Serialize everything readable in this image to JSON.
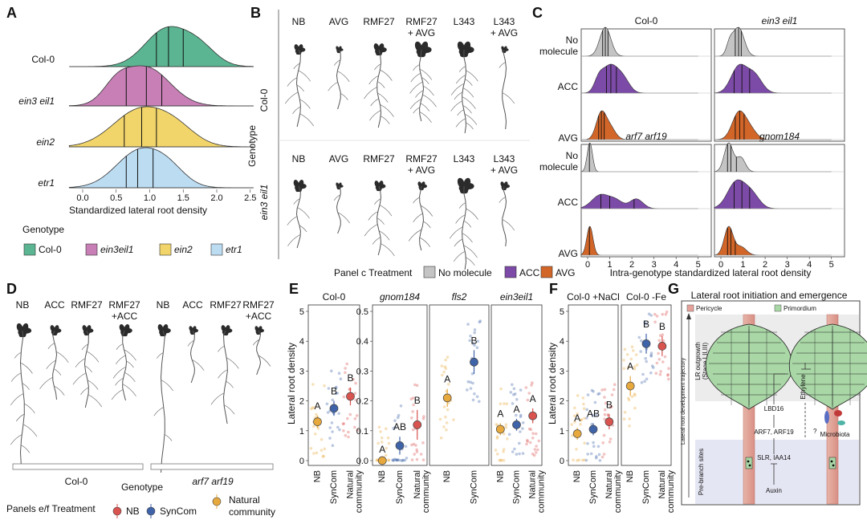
{
  "colors": {
    "col0": "#5bb592",
    "ein3eil1": "#c77fb6",
    "ein2": "#f2d56a",
    "etr1": "#bcdcf2",
    "nomol": "#c4c4c4",
    "acc": "#7c4aa7",
    "avg": "#d26528",
    "nb": "#d9534f",
    "syncom": "#3f63a8",
    "natural": "#e7a93d",
    "pericycle": "#e6a29a",
    "primordium": "#a9d7a6"
  },
  "panel_labels": {
    "a": "A",
    "b": "B",
    "c": "C",
    "d": "D",
    "e": "E",
    "f": "F",
    "g": "G"
  },
  "panel_a": {
    "genotype_rows": [
      "Col-0",
      "ein3 eil1",
      "ein2",
      "etr1"
    ],
    "xticks": [
      "0.0",
      "0.5",
      "1.0",
      "1.5",
      "2.0",
      "2.5"
    ],
    "xlabel": "Standardized lateral root density",
    "legend_title": "Genotype",
    "legend": [
      "Col-0",
      "ein3eil1",
      "ein2",
      "etr1"
    ]
  },
  "panel_b": {
    "treatments": [
      "NB",
      "AVG",
      "RMF27",
      "RMF27\n+ AVG",
      "L343",
      "L343\n+ AVG"
    ],
    "treatment_line1": [
      "NB",
      "AVG",
      "RMF27",
      "RMF27",
      "L343",
      "L343"
    ],
    "treatment_line2": [
      "",
      "",
      "",
      "+ AVG",
      "",
      "+ AVG"
    ],
    "genotypes": [
      "Col-0",
      "ein3 eil1"
    ],
    "axis_label": "Genotype"
  },
  "panel_c": {
    "facet_titles": [
      "Col-0",
      "ein3 eil1",
      "arf7 arf19",
      "gnom184"
    ],
    "row_labels": [
      "No\nmolecule",
      "ACC",
      "AVG"
    ],
    "row_line1": [
      "No",
      "ACC",
      "AVG"
    ],
    "row_line2": [
      "molecule",
      "",
      ""
    ],
    "xticks": [
      "0",
      "1",
      "2",
      "3",
      "4",
      "5"
    ],
    "xlabel": "Intra-genotype standardized  lateral root density",
    "legend_title": "Panel c Treatment",
    "legend": [
      "No molecule",
      "ACC",
      "AVG"
    ]
  },
  "panel_d": {
    "treatments_left": [
      "NB",
      "ACC",
      "RMF27",
      "RMF27\n+ACC"
    ],
    "treatments_right": [
      "NB",
      "ACC",
      "RMF27",
      "RMF27\n+ACC"
    ],
    "genotypes": [
      "Col-0",
      "arf7 arf19"
    ],
    "axis_label": "Genotype",
    "legend_title": "Panels e/f Treatment",
    "legend": [
      "NB",
      "SynCom",
      "Natural\ncommunity"
    ],
    "legend_line1": [
      "NB",
      "SynCom",
      "Natural"
    ],
    "legend_line2": [
      "",
      "",
      "community"
    ]
  },
  "panel_e": {
    "ylabel": "Lateral root density",
    "facets": [
      {
        "title": "Col-0",
        "italic": false,
        "yticks": [
          "0",
          "1",
          "2",
          "3",
          "4",
          "5"
        ],
        "ymax": 5,
        "groups": [
          "NB",
          "SynCom",
          "Natural\ncommunity"
        ],
        "means": [
          1.3,
          1.75,
          2.15
        ],
        "ci": [
          [
            1.1,
            1.5
          ],
          [
            1.5,
            2.0
          ],
          [
            1.85,
            2.45
          ]
        ],
        "letters": [
          "A",
          "B",
          "B"
        ]
      },
      {
        "title": "gnom184",
        "italic": true,
        "yticks": [
          "0.0",
          "0.1",
          "0.2",
          "0.3",
          "0.4",
          "0.5"
        ],
        "ymax": 0.5,
        "groups": [
          "NB",
          "SynCom",
          "Natural\ncommunity"
        ],
        "means": [
          0.0,
          0.05,
          0.12
        ],
        "ci": [
          [
            0.0,
            0.005
          ],
          [
            0.02,
            0.08
          ],
          [
            0.07,
            0.17
          ]
        ],
        "letters": [
          "A",
          "AB",
          "B"
        ]
      },
      {
        "title": "fls2",
        "italic": true,
        "yticks": [],
        "ymax": 5,
        "groups": [
          "NB",
          "SynCom"
        ],
        "means": [
          2.1,
          3.3
        ],
        "ci": [
          [
            1.8,
            2.4
          ],
          [
            2.9,
            3.7
          ]
        ],
        "letters": [
          "A",
          "B"
        ]
      },
      {
        "title": "ein3eil1",
        "italic": true,
        "yticks": [],
        "ymax": 5,
        "groups": [
          "NB",
          "SynCom",
          "Natural\ncommunity"
        ],
        "means": [
          1.05,
          1.2,
          1.5
        ],
        "ci": [
          [
            0.85,
            1.25
          ],
          [
            1.0,
            1.4
          ],
          [
            1.25,
            1.75
          ]
        ],
        "letters": [
          "A",
          "A",
          "A"
        ]
      }
    ]
  },
  "panel_f": {
    "ylabel": "Lateral root density",
    "facets": [
      {
        "title": "Col-0 +NaCl",
        "yticks": [
          "0",
          "1",
          "2",
          "3",
          "4",
          "5"
        ],
        "ymax": 5,
        "groups": [
          "NB",
          "SynCom",
          "Natural\ncommunity"
        ],
        "means": [
          0.9,
          1.05,
          1.3
        ],
        "ci": [
          [
            0.7,
            1.1
          ],
          [
            0.85,
            1.25
          ],
          [
            1.05,
            1.55
          ]
        ],
        "letters": [
          "A",
          "AB",
          "B"
        ]
      },
      {
        "title": "Col-0 -Fe",
        "yticks": [],
        "ymax": 3,
        "groups": [
          "NB",
          "SynCom",
          "Natural\ncommunity"
        ],
        "means": [
          1.5,
          2.35,
          2.3
        ],
        "ci": [
          [
            1.3,
            1.7
          ],
          [
            2.15,
            2.55
          ],
          [
            2.1,
            2.5
          ]
        ],
        "letters": [
          "A",
          "B",
          "B"
        ]
      }
    ]
  },
  "panel_g": {
    "title": "Lateral root initiation and emergence",
    "legend": [
      "Pericycle",
      "Primordium"
    ],
    "trajectory_label": "Lateral root development trajectory",
    "outgrowth_label": "LR outgrowth\n(Stage I,II,III)",
    "outgrowth_line1": "LR outgrowth",
    "outgrowth_line2": "(Stage I,II,III)",
    "prebranch_label": "Pre-branch sites",
    "factors": [
      "LBD16",
      "ARF7, ARF19",
      "SLR, IAA14",
      "Auxin",
      "Ethylene",
      "Microbiota",
      "?"
    ]
  }
}
